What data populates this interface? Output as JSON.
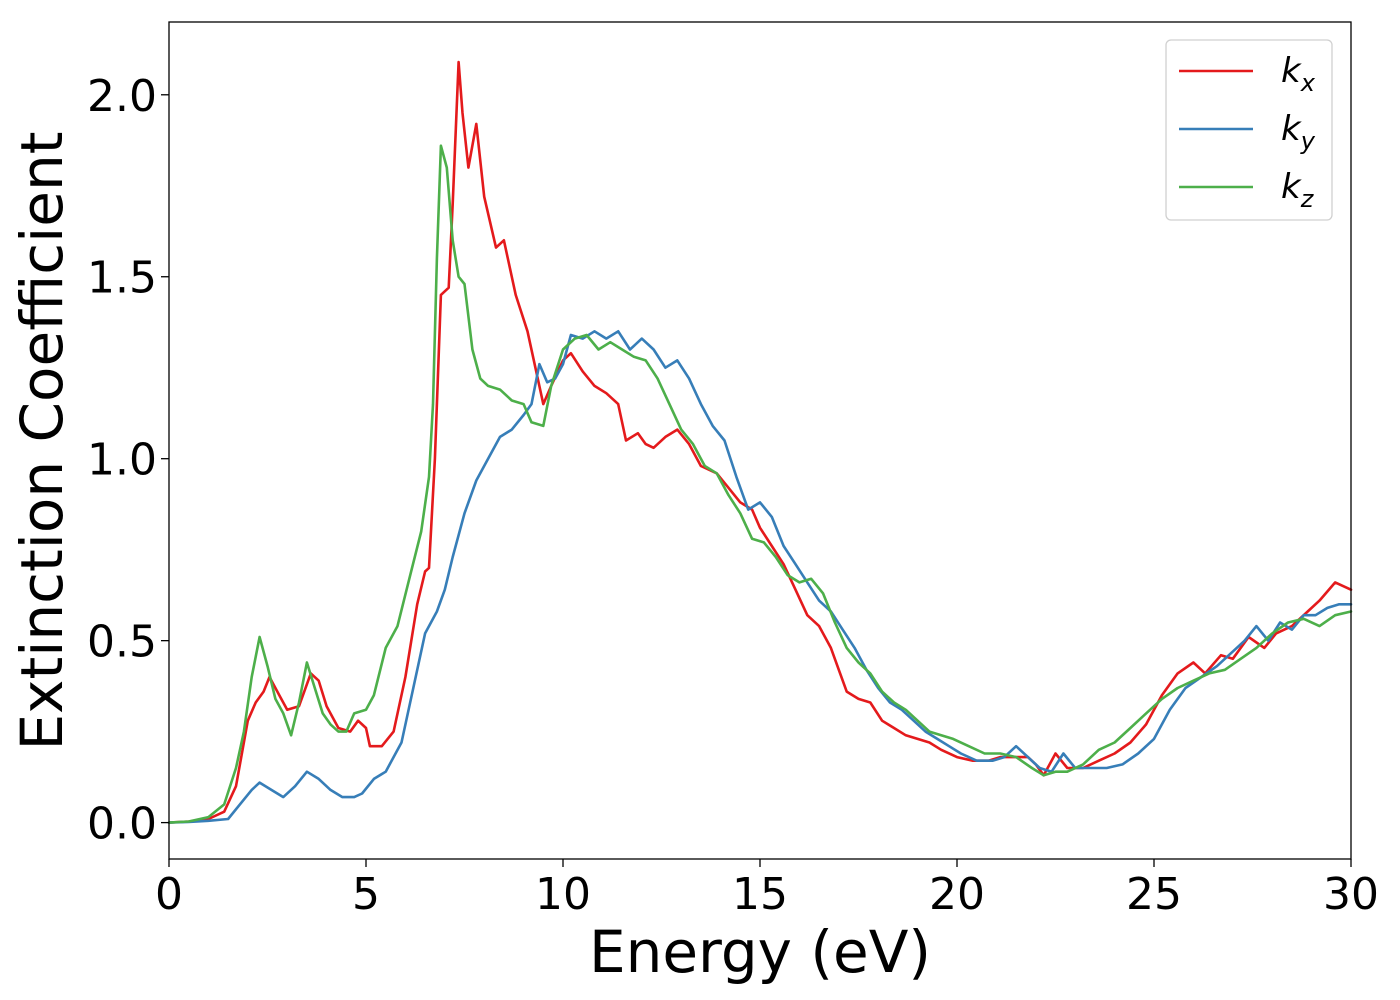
{
  "chart_data": {
    "type": "line",
    "xlabel": "Energy (eV)",
    "ylabel": "Extinction Coefficient",
    "xlim": [
      0,
      30
    ],
    "ylim": [
      -0.1,
      2.2
    ],
    "xticks": [
      0,
      5,
      10,
      15,
      20,
      25,
      30
    ],
    "xtick_labels": [
      "0",
      "5",
      "10",
      "15",
      "20",
      "25",
      "30"
    ],
    "yticks": [
      0.0,
      0.5,
      1.0,
      1.5,
      2.0
    ],
    "ytick_labels": [
      "0.0",
      "0.5",
      "1.0",
      "1.5",
      "2.0"
    ],
    "grid": false,
    "legend_position": "top-right",
    "series": [
      {
        "name": "k_x",
        "legend_base": "k",
        "legend_sub": "x",
        "color": "#e41a1c",
        "points": [
          [
            0,
            0
          ],
          [
            0.5,
            0.003
          ],
          [
            1.0,
            0.01
          ],
          [
            1.4,
            0.03
          ],
          [
            1.7,
            0.1
          ],
          [
            2.0,
            0.28
          ],
          [
            2.2,
            0.33
          ],
          [
            2.4,
            0.36
          ],
          [
            2.55,
            0.4
          ],
          [
            2.8,
            0.35
          ],
          [
            3.0,
            0.31
          ],
          [
            3.3,
            0.32
          ],
          [
            3.6,
            0.41
          ],
          [
            3.8,
            0.39
          ],
          [
            4.0,
            0.32
          ],
          [
            4.3,
            0.26
          ],
          [
            4.6,
            0.25
          ],
          [
            4.8,
            0.28
          ],
          [
            5.0,
            0.26
          ],
          [
            5.1,
            0.21
          ],
          [
            5.4,
            0.21
          ],
          [
            5.7,
            0.25
          ],
          [
            6.0,
            0.4
          ],
          [
            6.3,
            0.6
          ],
          [
            6.5,
            0.69
          ],
          [
            6.6,
            0.7
          ],
          [
            6.75,
            1.0
          ],
          [
            6.9,
            1.45
          ],
          [
            7.1,
            1.47
          ],
          [
            7.2,
            1.7
          ],
          [
            7.35,
            2.09
          ],
          [
            7.45,
            1.95
          ],
          [
            7.6,
            1.8
          ],
          [
            7.8,
            1.92
          ],
          [
            8.0,
            1.72
          ],
          [
            8.3,
            1.58
          ],
          [
            8.5,
            1.6
          ],
          [
            8.8,
            1.45
          ],
          [
            9.1,
            1.35
          ],
          [
            9.3,
            1.25
          ],
          [
            9.5,
            1.15
          ],
          [
            9.7,
            1.2
          ],
          [
            10.0,
            1.27
          ],
          [
            10.2,
            1.29
          ],
          [
            10.5,
            1.24
          ],
          [
            10.8,
            1.2
          ],
          [
            11.1,
            1.18
          ],
          [
            11.4,
            1.15
          ],
          [
            11.6,
            1.05
          ],
          [
            11.9,
            1.07
          ],
          [
            12.1,
            1.04
          ],
          [
            12.3,
            1.03
          ],
          [
            12.6,
            1.06
          ],
          [
            12.9,
            1.08
          ],
          [
            13.2,
            1.04
          ],
          [
            13.5,
            0.98
          ],
          [
            13.9,
            0.96
          ],
          [
            14.2,
            0.92
          ],
          [
            14.5,
            0.88
          ],
          [
            14.8,
            0.86
          ],
          [
            15.0,
            0.81
          ],
          [
            15.3,
            0.76
          ],
          [
            15.6,
            0.71
          ],
          [
            15.9,
            0.64
          ],
          [
            16.2,
            0.57
          ],
          [
            16.5,
            0.54
          ],
          [
            16.8,
            0.48
          ],
          [
            17.0,
            0.42
          ],
          [
            17.2,
            0.36
          ],
          [
            17.5,
            0.34
          ],
          [
            17.8,
            0.33
          ],
          [
            18.1,
            0.28
          ],
          [
            18.4,
            0.26
          ],
          [
            18.7,
            0.24
          ],
          [
            19.0,
            0.23
          ],
          [
            19.3,
            0.22
          ],
          [
            19.6,
            0.2
          ],
          [
            20.0,
            0.18
          ],
          [
            20.4,
            0.17
          ],
          [
            20.8,
            0.17
          ],
          [
            21.1,
            0.18
          ],
          [
            21.5,
            0.18
          ],
          [
            21.8,
            0.18
          ],
          [
            22.0,
            0.16
          ],
          [
            22.2,
            0.13
          ],
          [
            22.5,
            0.19
          ],
          [
            22.8,
            0.15
          ],
          [
            23.2,
            0.15
          ],
          [
            23.6,
            0.17
          ],
          [
            24.0,
            0.19
          ],
          [
            24.4,
            0.22
          ],
          [
            24.8,
            0.27
          ],
          [
            25.2,
            0.35
          ],
          [
            25.6,
            0.41
          ],
          [
            26.0,
            0.44
          ],
          [
            26.3,
            0.41
          ],
          [
            26.7,
            0.46
          ],
          [
            27.0,
            0.45
          ],
          [
            27.4,
            0.51
          ],
          [
            27.8,
            0.48
          ],
          [
            28.1,
            0.52
          ],
          [
            28.5,
            0.54
          ],
          [
            28.9,
            0.58
          ],
          [
            29.2,
            0.61
          ],
          [
            29.6,
            0.66
          ],
          [
            30.0,
            0.64
          ]
        ]
      },
      {
        "name": "k_y",
        "legend_base": "k",
        "legend_sub": "y",
        "color": "#377eb8",
        "points": [
          [
            0,
            0
          ],
          [
            0.5,
            0.002
          ],
          [
            1.0,
            0.005
          ],
          [
            1.5,
            0.01
          ],
          [
            1.8,
            0.05
          ],
          [
            2.1,
            0.09
          ],
          [
            2.3,
            0.11
          ],
          [
            2.6,
            0.09
          ],
          [
            2.9,
            0.07
          ],
          [
            3.2,
            0.1
          ],
          [
            3.5,
            0.14
          ],
          [
            3.8,
            0.12
          ],
          [
            4.1,
            0.09
          ],
          [
            4.4,
            0.07
          ],
          [
            4.7,
            0.07
          ],
          [
            4.9,
            0.08
          ],
          [
            5.2,
            0.12
          ],
          [
            5.5,
            0.14
          ],
          [
            5.9,
            0.22
          ],
          [
            6.2,
            0.37
          ],
          [
            6.5,
            0.52
          ],
          [
            6.8,
            0.58
          ],
          [
            7.0,
            0.64
          ],
          [
            7.2,
            0.73
          ],
          [
            7.5,
            0.85
          ],
          [
            7.8,
            0.94
          ],
          [
            8.1,
            1.0
          ],
          [
            8.4,
            1.06
          ],
          [
            8.7,
            1.08
          ],
          [
            9.0,
            1.12
          ],
          [
            9.2,
            1.15
          ],
          [
            9.4,
            1.26
          ],
          [
            9.6,
            1.21
          ],
          [
            9.8,
            1.22
          ],
          [
            10.0,
            1.26
          ],
          [
            10.2,
            1.34
          ],
          [
            10.5,
            1.33
          ],
          [
            10.8,
            1.35
          ],
          [
            11.1,
            1.33
          ],
          [
            11.4,
            1.35
          ],
          [
            11.7,
            1.3
          ],
          [
            12.0,
            1.33
          ],
          [
            12.3,
            1.3
          ],
          [
            12.6,
            1.25
          ],
          [
            12.9,
            1.27
          ],
          [
            13.2,
            1.22
          ],
          [
            13.5,
            1.15
          ],
          [
            13.8,
            1.09
          ],
          [
            14.1,
            1.05
          ],
          [
            14.4,
            0.95
          ],
          [
            14.7,
            0.86
          ],
          [
            15.0,
            0.88
          ],
          [
            15.3,
            0.84
          ],
          [
            15.6,
            0.76
          ],
          [
            15.9,
            0.71
          ],
          [
            16.2,
            0.66
          ],
          [
            16.5,
            0.61
          ],
          [
            16.8,
            0.58
          ],
          [
            17.1,
            0.53
          ],
          [
            17.4,
            0.48
          ],
          [
            17.7,
            0.42
          ],
          [
            18.0,
            0.37
          ],
          [
            18.3,
            0.33
          ],
          [
            18.6,
            0.31
          ],
          [
            18.9,
            0.28
          ],
          [
            19.2,
            0.25
          ],
          [
            19.5,
            0.23
          ],
          [
            19.8,
            0.21
          ],
          [
            20.1,
            0.19
          ],
          [
            20.5,
            0.17
          ],
          [
            20.9,
            0.17
          ],
          [
            21.2,
            0.18
          ],
          [
            21.5,
            0.21
          ],
          [
            21.8,
            0.18
          ],
          [
            22.1,
            0.15
          ],
          [
            22.4,
            0.14
          ],
          [
            22.7,
            0.19
          ],
          [
            23.0,
            0.15
          ],
          [
            23.4,
            0.15
          ],
          [
            23.8,
            0.15
          ],
          [
            24.2,
            0.16
          ],
          [
            24.6,
            0.19
          ],
          [
            25.0,
            0.23
          ],
          [
            25.4,
            0.31
          ],
          [
            25.8,
            0.37
          ],
          [
            26.2,
            0.4
          ],
          [
            26.6,
            0.43
          ],
          [
            27.0,
            0.47
          ],
          [
            27.3,
            0.5
          ],
          [
            27.6,
            0.54
          ],
          [
            27.9,
            0.5
          ],
          [
            28.2,
            0.55
          ],
          [
            28.5,
            0.53
          ],
          [
            28.8,
            0.57
          ],
          [
            29.1,
            0.57
          ],
          [
            29.4,
            0.59
          ],
          [
            29.7,
            0.6
          ],
          [
            30.0,
            0.6
          ]
        ]
      },
      {
        "name": "k_z",
        "legend_base": "k",
        "legend_sub": "z",
        "color": "#4daf4a",
        "points": [
          [
            0,
            0
          ],
          [
            0.5,
            0.003
          ],
          [
            1.0,
            0.015
          ],
          [
            1.4,
            0.05
          ],
          [
            1.7,
            0.15
          ],
          [
            1.9,
            0.25
          ],
          [
            2.1,
            0.4
          ],
          [
            2.3,
            0.51
          ],
          [
            2.5,
            0.43
          ],
          [
            2.7,
            0.34
          ],
          [
            2.9,
            0.3
          ],
          [
            3.1,
            0.24
          ],
          [
            3.3,
            0.33
          ],
          [
            3.5,
            0.44
          ],
          [
            3.7,
            0.37
          ],
          [
            3.9,
            0.3
          ],
          [
            4.1,
            0.27
          ],
          [
            4.3,
            0.25
          ],
          [
            4.5,
            0.25
          ],
          [
            4.7,
            0.3
          ],
          [
            5.0,
            0.31
          ],
          [
            5.2,
            0.35
          ],
          [
            5.5,
            0.48
          ],
          [
            5.8,
            0.54
          ],
          [
            6.1,
            0.67
          ],
          [
            6.4,
            0.8
          ],
          [
            6.6,
            0.95
          ],
          [
            6.7,
            1.15
          ],
          [
            6.8,
            1.55
          ],
          [
            6.9,
            1.86
          ],
          [
            7.05,
            1.8
          ],
          [
            7.2,
            1.6
          ],
          [
            7.35,
            1.5
          ],
          [
            7.5,
            1.48
          ],
          [
            7.7,
            1.3
          ],
          [
            7.9,
            1.22
          ],
          [
            8.1,
            1.2
          ],
          [
            8.4,
            1.19
          ],
          [
            8.7,
            1.16
          ],
          [
            9.0,
            1.15
          ],
          [
            9.2,
            1.1
          ],
          [
            9.5,
            1.09
          ],
          [
            9.7,
            1.2
          ],
          [
            10.0,
            1.3
          ],
          [
            10.3,
            1.33
          ],
          [
            10.6,
            1.34
          ],
          [
            10.9,
            1.3
          ],
          [
            11.2,
            1.32
          ],
          [
            11.5,
            1.3
          ],
          [
            11.8,
            1.28
          ],
          [
            12.1,
            1.27
          ],
          [
            12.4,
            1.22
          ],
          [
            12.7,
            1.15
          ],
          [
            13.0,
            1.08
          ],
          [
            13.3,
            1.04
          ],
          [
            13.6,
            0.98
          ],
          [
            13.9,
            0.96
          ],
          [
            14.2,
            0.9
          ],
          [
            14.5,
            0.85
          ],
          [
            14.8,
            0.78
          ],
          [
            15.1,
            0.77
          ],
          [
            15.4,
            0.73
          ],
          [
            15.7,
            0.68
          ],
          [
            16.0,
            0.66
          ],
          [
            16.3,
            0.67
          ],
          [
            16.6,
            0.63
          ],
          [
            16.9,
            0.55
          ],
          [
            17.2,
            0.48
          ],
          [
            17.5,
            0.44
          ],
          [
            17.8,
            0.41
          ],
          [
            18.1,
            0.36
          ],
          [
            18.4,
            0.33
          ],
          [
            18.7,
            0.31
          ],
          [
            19.0,
            0.28
          ],
          [
            19.3,
            0.25
          ],
          [
            19.6,
            0.24
          ],
          [
            19.9,
            0.23
          ],
          [
            20.3,
            0.21
          ],
          [
            20.7,
            0.19
          ],
          [
            21.1,
            0.19
          ],
          [
            21.5,
            0.18
          ],
          [
            21.9,
            0.15
          ],
          [
            22.2,
            0.13
          ],
          [
            22.5,
            0.14
          ],
          [
            22.8,
            0.14
          ],
          [
            23.2,
            0.16
          ],
          [
            23.6,
            0.2
          ],
          [
            24.0,
            0.22
          ],
          [
            24.4,
            0.26
          ],
          [
            24.8,
            0.3
          ],
          [
            25.2,
            0.34
          ],
          [
            25.6,
            0.37
          ],
          [
            26.0,
            0.39
          ],
          [
            26.4,
            0.41
          ],
          [
            26.8,
            0.42
          ],
          [
            27.2,
            0.45
          ],
          [
            27.6,
            0.48
          ],
          [
            28.0,
            0.52
          ],
          [
            28.4,
            0.55
          ],
          [
            28.8,
            0.56
          ],
          [
            29.2,
            0.54
          ],
          [
            29.6,
            0.57
          ],
          [
            30.0,
            0.58
          ]
        ]
      }
    ]
  }
}
